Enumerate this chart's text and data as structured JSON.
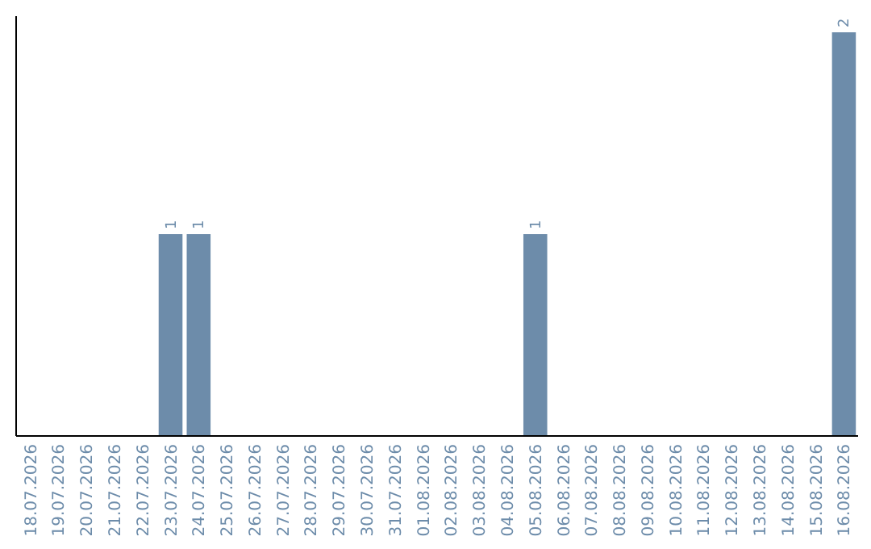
{
  "chart_data": {
    "type": "bar",
    "categories": [
      "18.07.2026",
      "19.07.2026",
      "20.07.2026",
      "21.07.2026",
      "22.07.2026",
      "23.07.2026",
      "24.07.2026",
      "25.07.2026",
      "26.07.2026",
      "27.07.2026",
      "28.07.2026",
      "29.07.2026",
      "30.07.2026",
      "31.07.2026",
      "01.08.2026",
      "02.08.2026",
      "03.08.2026",
      "04.08.2026",
      "05.08.2026",
      "06.08.2026",
      "07.08.2026",
      "08.08.2026",
      "09.08.2026",
      "10.08.2026",
      "11.08.2026",
      "12.08.2026",
      "13.08.2026",
      "14.08.2026",
      "15.08.2026",
      "16.08.2026"
    ],
    "values": [
      0,
      0,
      0,
      0,
      0,
      1,
      1,
      0,
      0,
      0,
      0,
      0,
      0,
      0,
      0,
      0,
      0,
      0,
      1,
      0,
      0,
      0,
      0,
      0,
      0,
      0,
      0,
      0,
      0,
      2
    ],
    "value_labels": [
      null,
      null,
      null,
      null,
      null,
      "1",
      "1",
      null,
      null,
      null,
      null,
      null,
      null,
      null,
      null,
      null,
      null,
      null,
      "1",
      null,
      null,
      null,
      null,
      null,
      null,
      null,
      null,
      null,
      null,
      "2"
    ],
    "color": "#6d8caa",
    "tick_labels": "x"
  }
}
